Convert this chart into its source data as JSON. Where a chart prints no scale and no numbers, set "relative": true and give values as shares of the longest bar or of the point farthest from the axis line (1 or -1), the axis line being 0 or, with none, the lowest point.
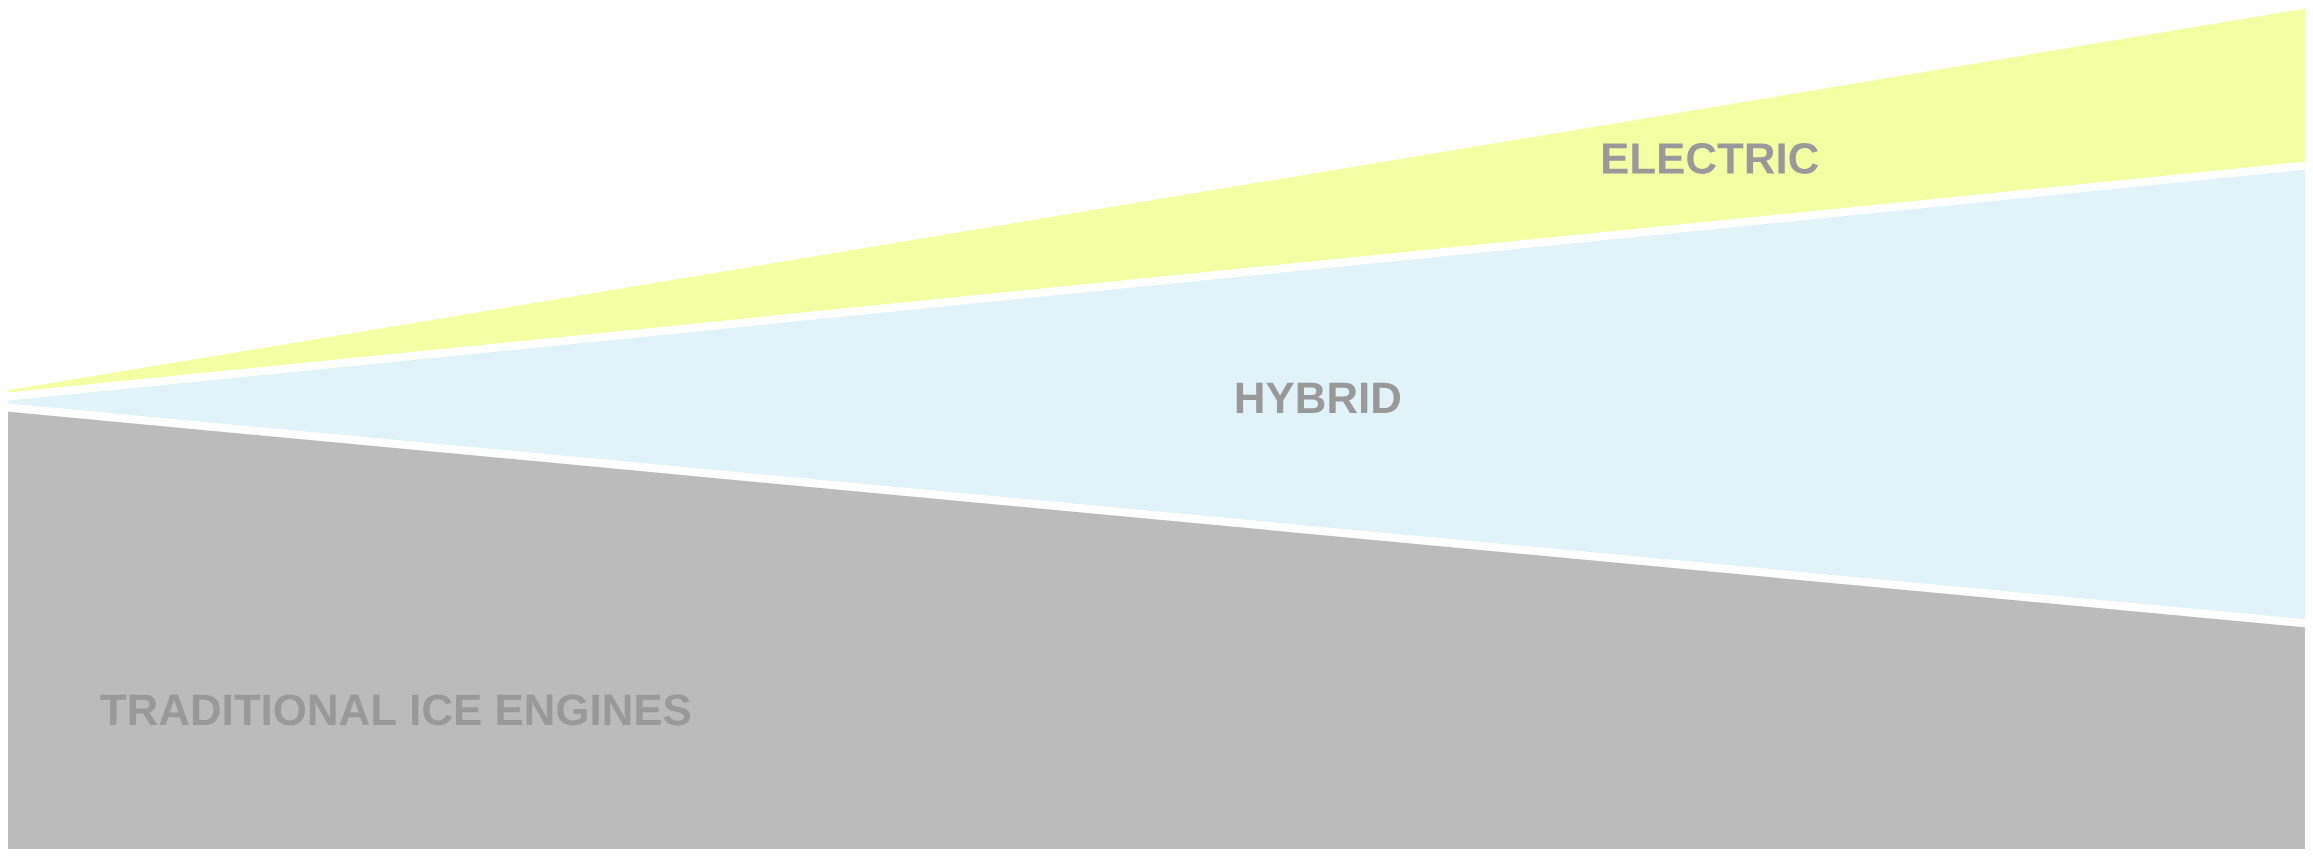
{
  "chart_data": {
    "type": "area",
    "relative": true,
    "stacked": true,
    "categories": [
      null,
      null
    ],
    "series": [
      {
        "name": "TRADITIONAL ICE ENGINES",
        "color": "#bbbbbb",
        "values": [
          0.525,
          0.27
        ]
      },
      {
        "name": "HYBRID",
        "color": "#e1f2f9",
        "values": [
          0.012,
          0.54
        ]
      },
      {
        "name": "ELECTRIC",
        "color": "#f2ffa3",
        "values": [
          0.012,
          0.19
        ]
      }
    ]
  }
}
